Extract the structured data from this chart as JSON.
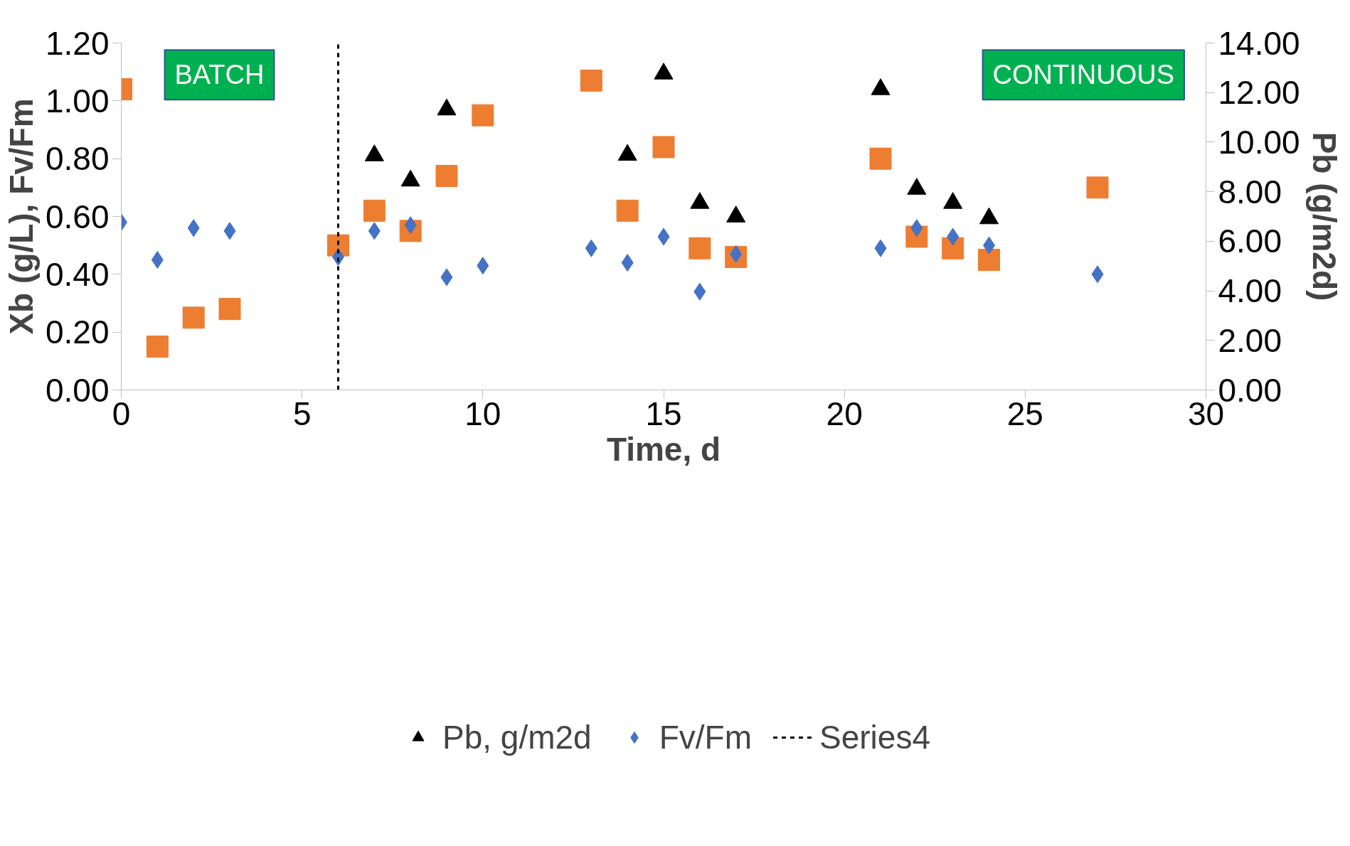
{
  "chart_data": {
    "type": "scatter",
    "xlabel": "Time, d",
    "ylabel": "Xb (g/L), Fv/Fm",
    "y2label": "Pb (g/m2d)",
    "xlim": [
      0,
      30
    ],
    "xticks": [
      0,
      5,
      10,
      15,
      20,
      25,
      30
    ],
    "ylim": [
      0,
      1.2
    ],
    "yticks": [
      {
        "value": 0,
        "label": "0.00"
      },
      {
        "value": 0.2,
        "label": "0.20"
      },
      {
        "value": 0.4,
        "label": "0.40"
      },
      {
        "value": 0.6,
        "label": "0.60"
      },
      {
        "value": 0.8,
        "label": "0.80"
      },
      {
        "value": 1.0,
        "label": "1.00"
      },
      {
        "value": 1.2,
        "label": "1.20"
      }
    ],
    "y2lim": [
      0,
      14
    ],
    "y2ticks": [
      {
        "value": 0,
        "label": "0.00"
      },
      {
        "value": 2,
        "label": "2.00"
      },
      {
        "value": 4,
        "label": "4.00"
      },
      {
        "value": 6,
        "label": "6.00"
      },
      {
        "value": 8,
        "label": "8.00"
      },
      {
        "value": 10,
        "label": "10.00"
      },
      {
        "value": 12,
        "label": "12.00"
      },
      {
        "value": 14,
        "label": "14.00"
      }
    ],
    "grid": false,
    "legend": "bottom",
    "annotations": [
      "BATCH",
      "CONTINUOUS"
    ],
    "series": [
      {
        "color": "#ed7d31",
        "marker": "square",
        "x": [
          0,
          1,
          2,
          3,
          6,
          7,
          8,
          9,
          10,
          13,
          14,
          15,
          16,
          17,
          21,
          22,
          23,
          24,
          27
        ],
        "values": [
          1.04,
          0.15,
          0.25,
          0.28,
          0.5,
          0.62,
          0.55,
          0.74,
          0.95,
          1.07,
          0.62,
          0.84,
          0.49,
          0.46,
          0.8,
          0.53,
          0.49,
          0.45,
          0.7
        ]
      },
      {
        "name": "Pb, g/m2d",
        "color": "#000000",
        "marker": "triangle",
        "axis": "y2",
        "x": [
          7,
          8,
          9,
          14,
          15,
          16,
          17,
          21,
          22,
          23,
          24
        ],
        "values": [
          9.46,
          8.44,
          11.31,
          9.48,
          12.76,
          7.54,
          6.99,
          12.13,
          8.11,
          7.54,
          6.92
        ]
      },
      {
        "name": "Fv/Fm",
        "color": "#4472c4",
        "marker": "diamond",
        "x": [
          0,
          1,
          2,
          3,
          6,
          7,
          8,
          9,
          10,
          13,
          14,
          15,
          16,
          17,
          21,
          22,
          23,
          24,
          27
        ],
        "values": [
          0.58,
          0.45,
          0.56,
          0.55,
          0.46,
          0.55,
          0.57,
          0.39,
          0.43,
          0.49,
          0.44,
          0.53,
          0.34,
          0.47,
          0.49,
          0.56,
          0.53,
          0.5,
          0.4
        ]
      },
      {
        "name": "Series4",
        "type": "line",
        "color": "#000000",
        "marker": "none",
        "line_style": "dashed",
        "x": [
          6,
          6
        ],
        "values": [
          0,
          1.2
        ]
      }
    ]
  }
}
